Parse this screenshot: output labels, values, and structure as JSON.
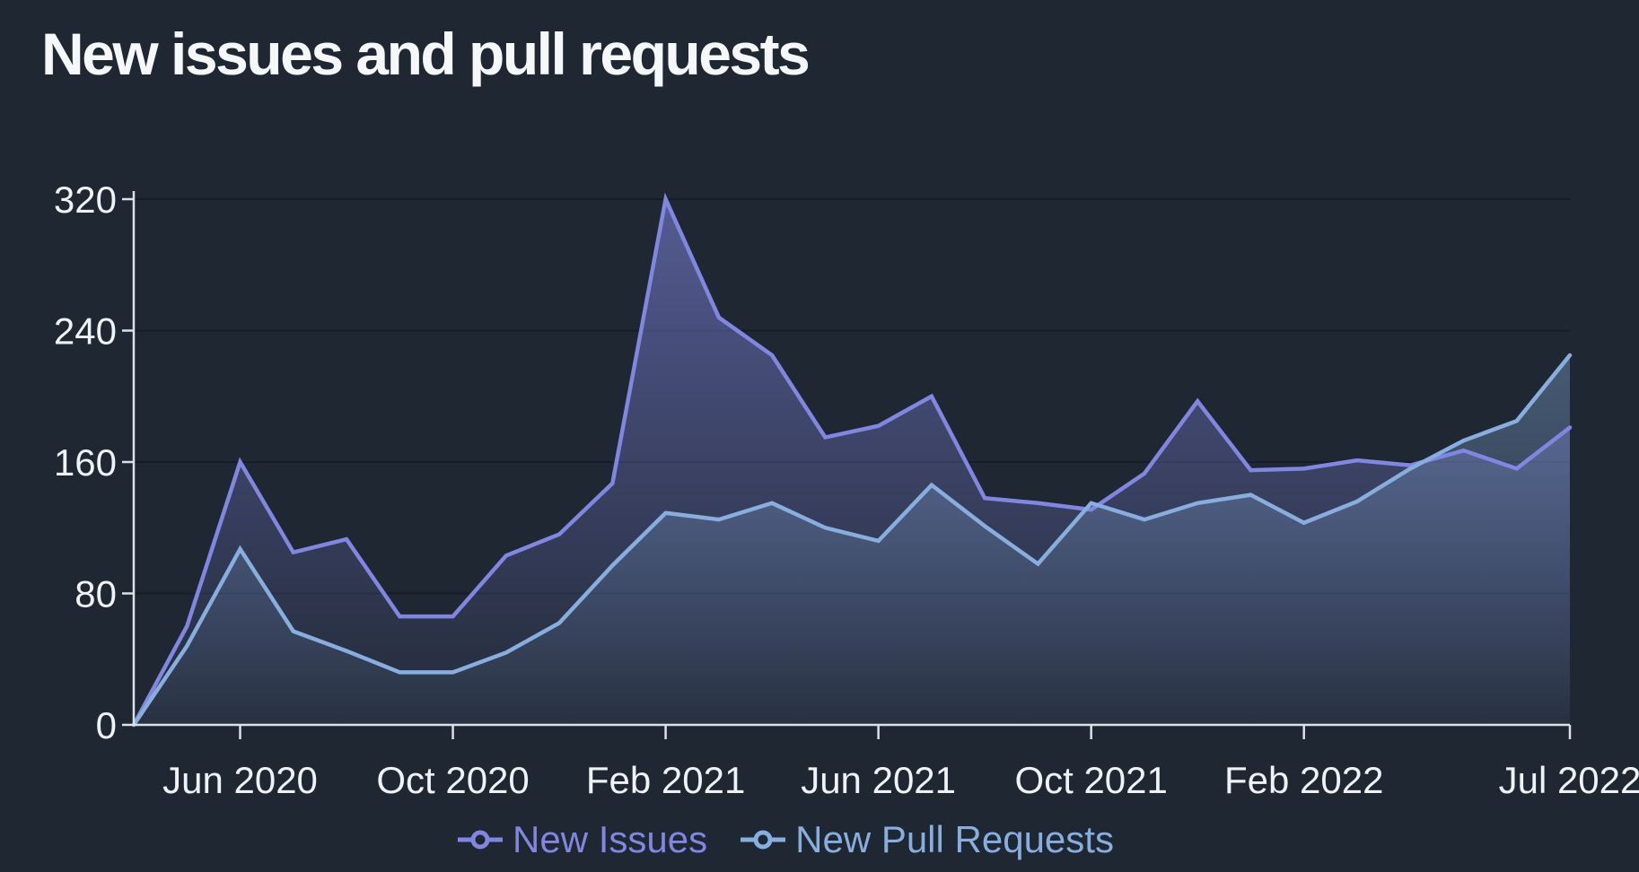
{
  "title": "New issues and pull requests",
  "colors": {
    "background": "#1f2733",
    "title": "#f6f7f9",
    "axis": "#dce1e8",
    "tick_label": "#eff2f6",
    "gridline": "#161d2a",
    "issues": "#8186e0",
    "pull_requests": "#87aede"
  },
  "chart_data": {
    "type": "area",
    "title": "New issues and pull requests",
    "xlabel": "",
    "ylabel": "",
    "ylim": [
      0,
      320
    ],
    "grid": true,
    "legend_position": "bottom",
    "x": [
      "Apr 2020",
      "May 2020",
      "Jun 2020",
      "Jul 2020",
      "Aug 2020",
      "Sep 2020",
      "Oct 2020",
      "Nov 2020",
      "Dec 2020",
      "Jan 2021",
      "Feb 2021",
      "Mar 2021",
      "Apr 2021",
      "May 2021",
      "Jun 2021",
      "Jul 2021",
      "Aug 2021",
      "Sep 2021",
      "Oct 2021",
      "Nov 2021",
      "Dec 2021",
      "Jan 2022",
      "Feb 2022",
      "Mar 2022",
      "Apr 2022",
      "May 2022",
      "Jun 2022",
      "Jul 2022"
    ],
    "series": [
      {
        "name": "New Issues",
        "color": "#8186e0",
        "values": [
          0,
          60,
          160,
          105,
          113,
          66,
          66,
          103,
          116,
          147,
          320,
          248,
          225,
          175,
          182,
          200,
          138,
          135,
          131,
          153,
          197,
          155,
          156,
          161,
          158,
          167,
          156,
          181
        ]
      },
      {
        "name": "New Pull Requests",
        "color": "#87aede",
        "values": [
          0,
          48,
          107,
          57,
          45,
          32,
          32,
          44,
          62,
          97,
          129,
          125,
          135,
          120,
          112,
          146,
          121,
          98,
          135,
          125,
          135,
          140,
          123,
          136,
          156,
          173,
          185,
          225
        ]
      }
    ],
    "y_ticks": [
      0,
      80,
      160,
      240,
      320
    ],
    "x_ticks": [
      {
        "index": 2,
        "label": "Jun 2020"
      },
      {
        "index": 6,
        "label": "Oct 2020"
      },
      {
        "index": 10,
        "label": "Feb 2021"
      },
      {
        "index": 14,
        "label": "Jun 2021"
      },
      {
        "index": 18,
        "label": "Oct 2021"
      },
      {
        "index": 22,
        "label": "Feb 2022"
      },
      {
        "index": 27,
        "label": "Jul 2022"
      }
    ]
  }
}
